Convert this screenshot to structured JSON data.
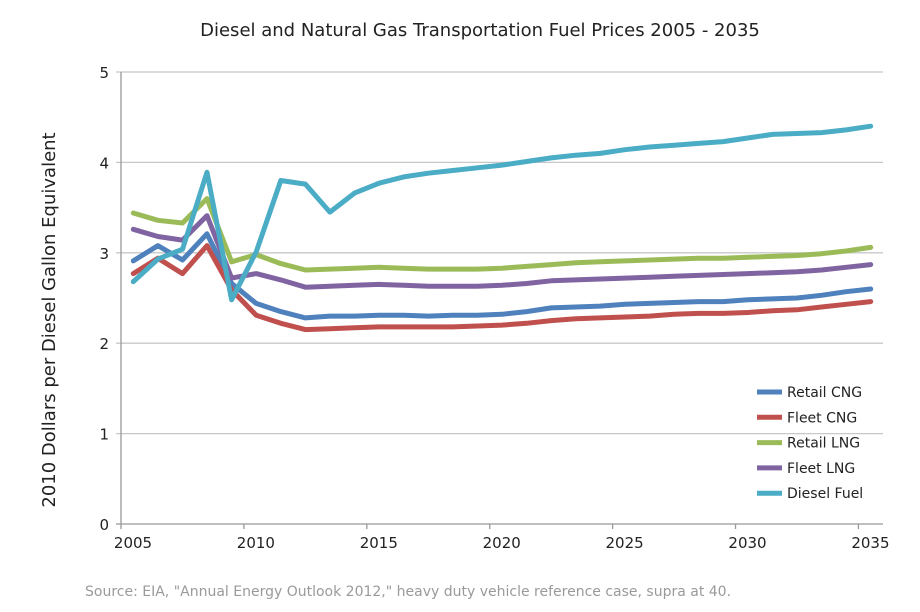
{
  "chart_data": {
    "type": "line",
    "title": "Diesel and Natural Gas Transportation Fuel Prices 2005 - 2035",
    "xlabel": "",
    "ylabel": "2010 Dollars per Diesel Gallon Equivalent",
    "ylim": [
      0,
      5
    ],
    "y_ticks": [
      "0",
      "1",
      "2",
      "3",
      "4",
      "5"
    ],
    "x_ticks": [
      "2005",
      "2010",
      "2015",
      "2020",
      "2025",
      "2030",
      "2035"
    ],
    "grid": true,
    "legend_position": "right",
    "x": [
      2005,
      2006,
      2007,
      2008,
      2009,
      2010,
      2011,
      2012,
      2013,
      2014,
      2015,
      2016,
      2017,
      2018,
      2019,
      2020,
      2021,
      2022,
      2023,
      2024,
      2025,
      2026,
      2027,
      2028,
      2029,
      2030,
      2031,
      2032,
      2033,
      2034,
      2035
    ],
    "series": [
      {
        "name": "Retail CNG",
        "color": "#4f81bd",
        "values": [
          2.91,
          3.08,
          2.92,
          3.21,
          2.66,
          2.44,
          2.35,
          2.28,
          2.3,
          2.3,
          2.31,
          2.31,
          2.3,
          2.31,
          2.31,
          2.32,
          2.35,
          2.39,
          2.4,
          2.41,
          2.43,
          2.44,
          2.45,
          2.46,
          2.46,
          2.48,
          2.49,
          2.5,
          2.53,
          2.57,
          2.6
        ]
      },
      {
        "name": "Fleet CNG",
        "color": "#c0504d",
        "values": [
          2.77,
          2.94,
          2.77,
          3.08,
          2.59,
          2.31,
          2.22,
          2.15,
          2.16,
          2.17,
          2.18,
          2.18,
          2.18,
          2.18,
          2.19,
          2.2,
          2.22,
          2.25,
          2.27,
          2.28,
          2.29,
          2.3,
          2.32,
          2.33,
          2.33,
          2.34,
          2.36,
          2.37,
          2.4,
          2.43,
          2.46
        ]
      },
      {
        "name": "Retail LNG",
        "color": "#9bbb59",
        "values": [
          3.44,
          3.36,
          3.33,
          3.6,
          2.9,
          2.98,
          2.88,
          2.81,
          2.82,
          2.83,
          2.84,
          2.83,
          2.82,
          2.82,
          2.82,
          2.83,
          2.85,
          2.87,
          2.89,
          2.9,
          2.91,
          2.92,
          2.93,
          2.94,
          2.94,
          2.95,
          2.96,
          2.97,
          2.99,
          3.02,
          3.06
        ]
      },
      {
        "name": "Fleet LNG",
        "color": "#8064a2",
        "values": [
          3.26,
          3.18,
          3.14,
          3.41,
          2.72,
          2.77,
          2.7,
          2.62,
          2.63,
          2.64,
          2.65,
          2.64,
          2.63,
          2.63,
          2.63,
          2.64,
          2.66,
          2.69,
          2.7,
          2.71,
          2.72,
          2.73,
          2.74,
          2.75,
          2.76,
          2.77,
          2.78,
          2.79,
          2.81,
          2.84,
          2.87
        ]
      },
      {
        "name": "Diesel Fuel",
        "color": "#4bacc6",
        "values": [
          2.68,
          2.93,
          3.04,
          3.89,
          2.48,
          3.01,
          3.8,
          3.76,
          3.45,
          3.66,
          3.77,
          3.84,
          3.88,
          3.91,
          3.94,
          3.97,
          4.01,
          4.05,
          4.08,
          4.1,
          4.14,
          4.17,
          4.19,
          4.21,
          4.23,
          4.27,
          4.31,
          4.32,
          4.33,
          4.36,
          4.4
        ]
      }
    ]
  },
  "source": "Source: EIA, \"Annual Energy Outlook 2012,\" heavy duty vehicle reference case, supra at 40."
}
